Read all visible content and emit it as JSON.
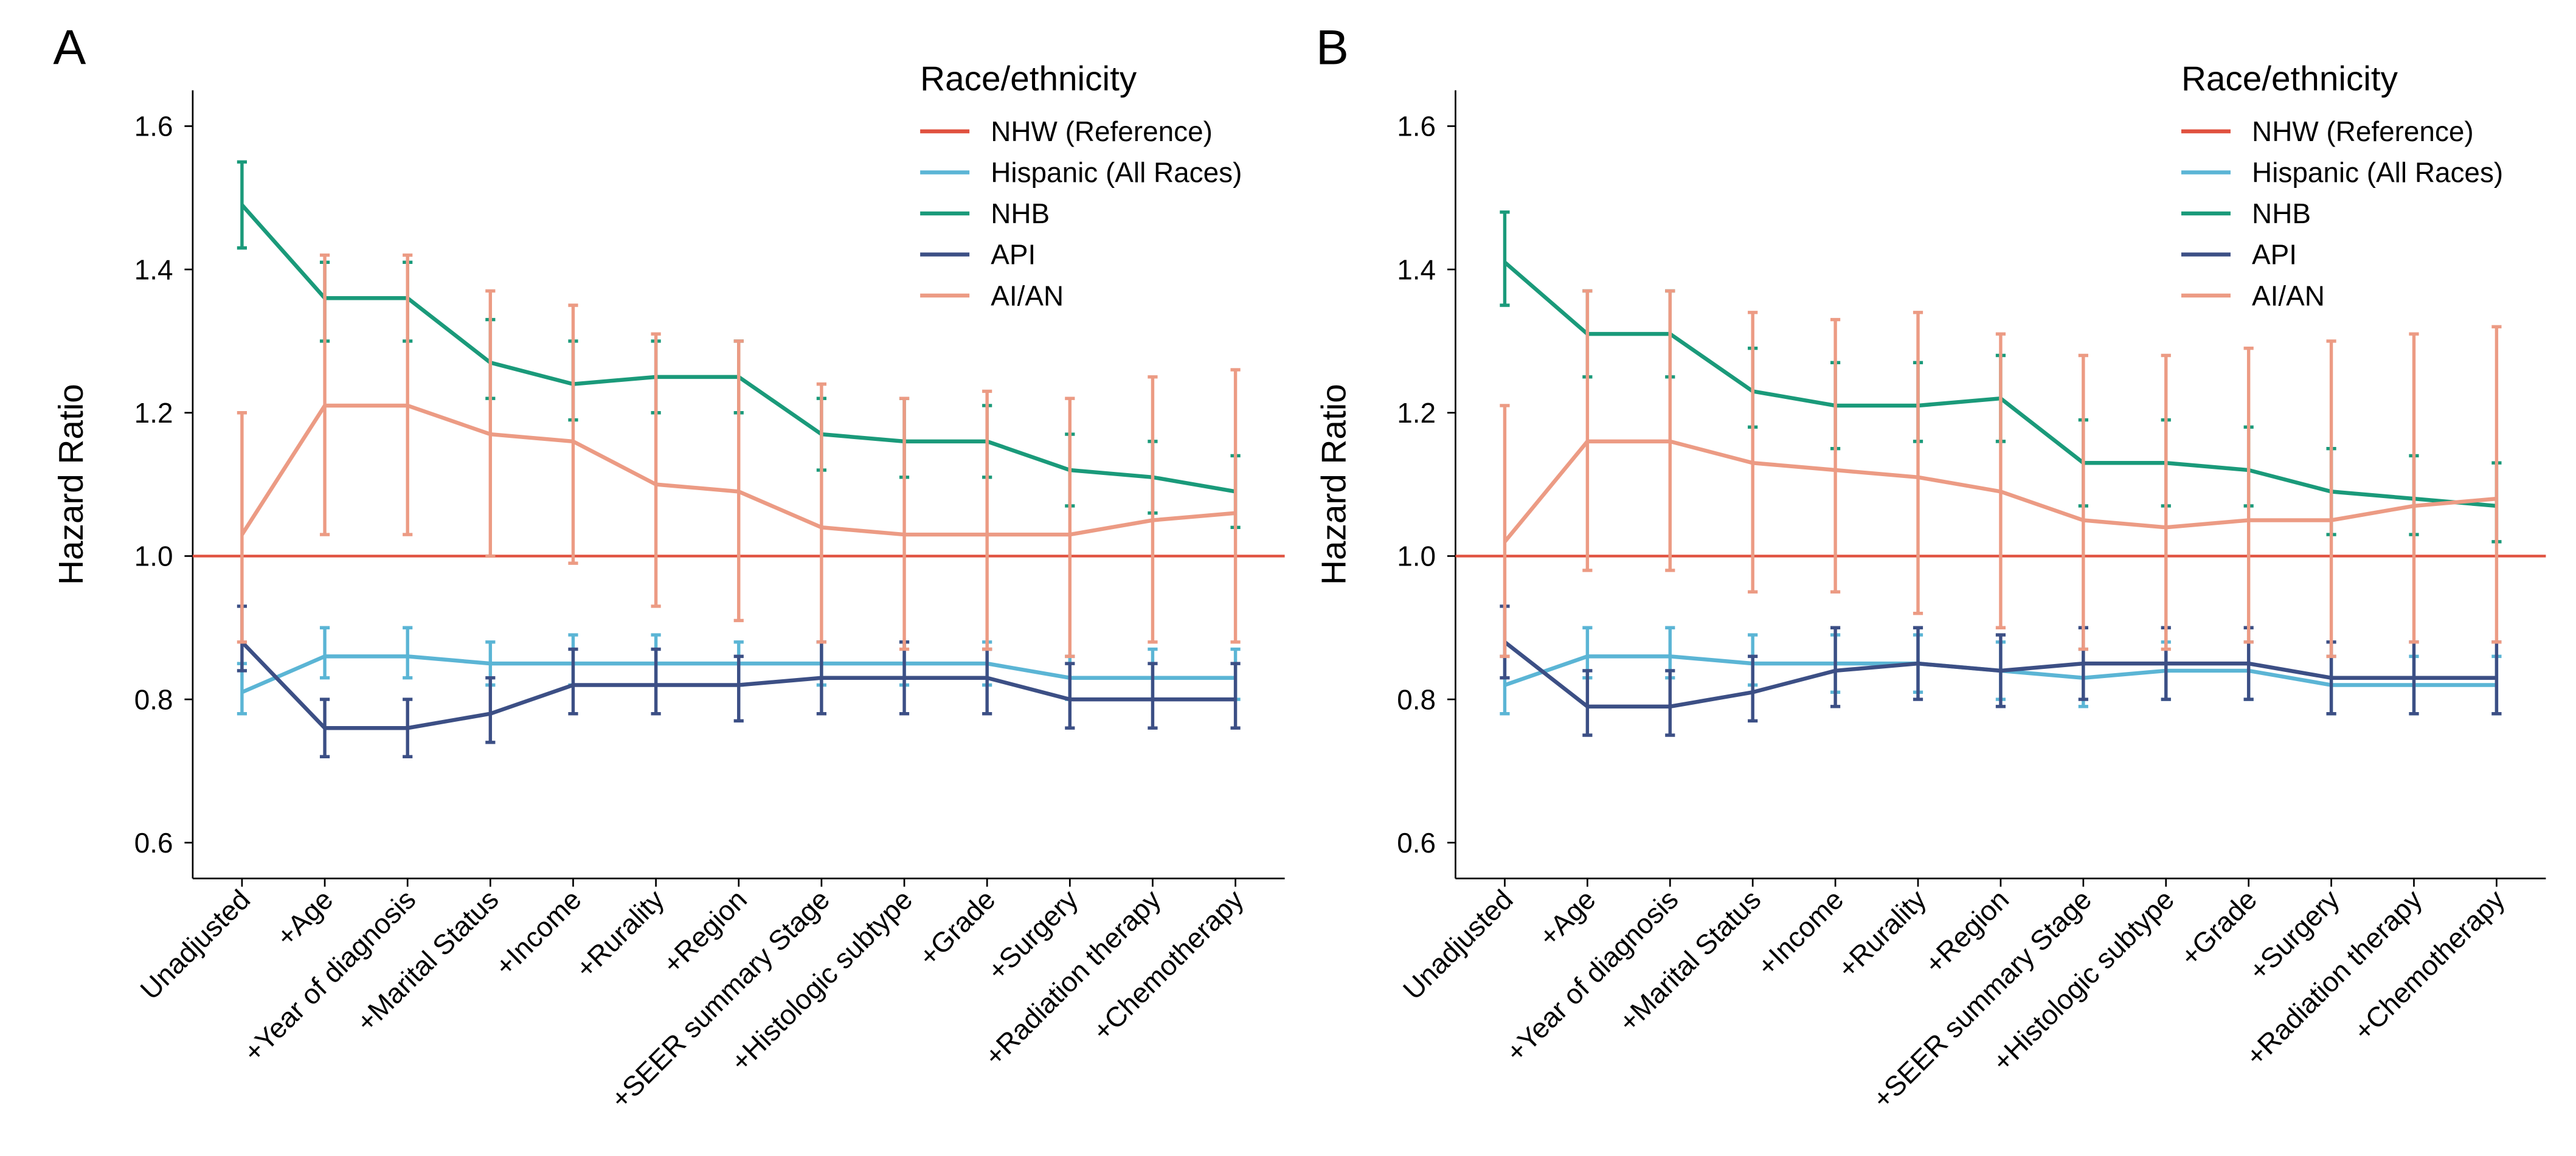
{
  "chart_data": [
    {
      "type": "line",
      "title": "A",
      "ylabel": "Hazard Ratio",
      "legend_title": "Race/ethnicity",
      "legend": "upper right",
      "categories": [
        "Unadjusted",
        "+Age",
        "+Year of diagnosis",
        "+Marital Status",
        "+Income",
        "+Rurality",
        "+Region",
        "+SEER summary Stage",
        "+Histologic subtype",
        "+Grade",
        "+Surgery",
        "+Radiation therapy",
        "+Chemotherapy"
      ],
      "ylim": [
        0.55,
        1.65
      ],
      "yticks": [
        0.6,
        0.8,
        {
          "value": 1.0,
          "label": "1.0"
        },
        1.2,
        1.4,
        1.6
      ],
      "series": [
        {
          "name": "NHW (Reference)",
          "color": "#e0513f",
          "reference": true,
          "values": [
            1,
            1,
            1,
            1,
            1,
            1,
            1,
            1,
            1,
            1,
            1,
            1,
            1
          ]
        },
        {
          "name": "Hispanic (All Races)",
          "color": "#5bb5d5",
          "values": [
            0.81,
            0.86,
            0.86,
            0.85,
            0.85,
            0.85,
            0.85,
            0.85,
            0.85,
            0.85,
            0.83,
            0.83,
            0.83
          ],
          "lower": [
            0.78,
            0.83,
            0.83,
            0.82,
            0.82,
            0.82,
            0.82,
            0.82,
            0.82,
            0.82,
            0.8,
            0.8,
            0.8
          ],
          "upper": [
            0.85,
            0.9,
            0.9,
            0.88,
            0.89,
            0.89,
            0.88,
            0.88,
            0.88,
            0.88,
            0.86,
            0.87,
            0.87
          ]
        },
        {
          "name": "NHB",
          "color": "#1a9a7a",
          "values": [
            1.49,
            1.36,
            1.36,
            1.27,
            1.24,
            1.25,
            1.25,
            1.17,
            1.16,
            1.16,
            1.12,
            1.11,
            1.09
          ],
          "lower": [
            1.43,
            1.3,
            1.3,
            1.22,
            1.19,
            1.2,
            1.2,
            1.12,
            1.11,
            1.11,
            1.07,
            1.06,
            1.04
          ],
          "upper": [
            1.55,
            1.41,
            1.41,
            1.33,
            1.3,
            1.3,
            1.3,
            1.22,
            1.22,
            1.21,
            1.17,
            1.16,
            1.14
          ]
        },
        {
          "name": "API",
          "color": "#3c4f85",
          "values": [
            0.88,
            0.76,
            0.76,
            0.78,
            0.82,
            0.82,
            0.82,
            0.83,
            0.83,
            0.83,
            0.8,
            0.8,
            0.8
          ],
          "lower": [
            0.84,
            0.72,
            0.72,
            0.74,
            0.78,
            0.78,
            0.77,
            0.78,
            0.78,
            0.78,
            0.76,
            0.76,
            0.76
          ],
          "upper": [
            0.93,
            0.8,
            0.8,
            0.83,
            0.87,
            0.87,
            0.86,
            0.88,
            0.88,
            0.87,
            0.85,
            0.85,
            0.85
          ]
        },
        {
          "name": "AI/AN",
          "color": "#ec9b84",
          "values": [
            1.03,
            1.21,
            1.21,
            1.17,
            1.16,
            1.1,
            1.09,
            1.04,
            1.03,
            1.03,
            1.03,
            1.05,
            1.06
          ],
          "lower": [
            0.88,
            1.03,
            1.03,
            1.0,
            0.99,
            0.93,
            0.91,
            0.88,
            0.87,
            0.87,
            0.86,
            0.88,
            0.88
          ],
          "upper": [
            1.2,
            1.42,
            1.42,
            1.37,
            1.35,
            1.31,
            1.3,
            1.24,
            1.22,
            1.23,
            1.22,
            1.25,
            1.26
          ]
        }
      ]
    },
    {
      "type": "line",
      "title": "B",
      "ylabel": "Hazard Ratio",
      "legend_title": "Race/ethnicity",
      "legend": "upper right",
      "categories": [
        "Unadjusted",
        "+Age",
        "+Year of diagnosis",
        "+Marital Status",
        "+Income",
        "+Rurality",
        "+Region",
        "+SEER summary Stage",
        "+Histologic subtype",
        "+Grade",
        "+Surgery",
        "+Radiation therapy",
        "+Chemotherapy"
      ],
      "ylim": [
        0.55,
        1.65
      ],
      "yticks": [
        0.6,
        0.8,
        {
          "value": 1.0,
          "label": "1.0"
        },
        1.2,
        1.4,
        1.6
      ],
      "series": [
        {
          "name": "NHW (Reference)",
          "color": "#e0513f",
          "reference": true,
          "values": [
            1,
            1,
            1,
            1,
            1,
            1,
            1,
            1,
            1,
            1,
            1,
            1,
            1
          ]
        },
        {
          "name": "Hispanic (All Races)",
          "color": "#5bb5d5",
          "values": [
            0.82,
            0.86,
            0.86,
            0.85,
            0.85,
            0.85,
            0.84,
            0.83,
            0.84,
            0.84,
            0.82,
            0.82,
            0.82
          ],
          "lower": [
            0.78,
            0.83,
            0.83,
            0.82,
            0.81,
            0.81,
            0.8,
            0.79,
            0.8,
            0.8,
            0.78,
            0.78,
            0.78
          ],
          "upper": [
            0.86,
            0.9,
            0.9,
            0.89,
            0.89,
            0.89,
            0.88,
            0.87,
            0.88,
            0.88,
            0.86,
            0.86,
            0.86
          ]
        },
        {
          "name": "NHB",
          "color": "#1a9a7a",
          "values": [
            1.41,
            1.31,
            1.31,
            1.23,
            1.21,
            1.21,
            1.22,
            1.13,
            1.13,
            1.12,
            1.09,
            1.08,
            1.07
          ],
          "lower": [
            1.35,
            1.25,
            1.25,
            1.18,
            1.15,
            1.16,
            1.16,
            1.07,
            1.07,
            1.07,
            1.03,
            1.03,
            1.02
          ],
          "upper": [
            1.48,
            1.37,
            1.37,
            1.29,
            1.27,
            1.27,
            1.28,
            1.19,
            1.19,
            1.18,
            1.15,
            1.14,
            1.13
          ]
        },
        {
          "name": "API",
          "color": "#3c4f85",
          "values": [
            0.88,
            0.79,
            0.79,
            0.81,
            0.84,
            0.85,
            0.84,
            0.85,
            0.85,
            0.85,
            0.83,
            0.83,
            0.83
          ],
          "lower": [
            0.83,
            0.75,
            0.75,
            0.77,
            0.79,
            0.8,
            0.79,
            0.8,
            0.8,
            0.8,
            0.78,
            0.78,
            0.78
          ],
          "upper": [
            0.93,
            0.84,
            0.84,
            0.86,
            0.9,
            0.9,
            0.89,
            0.9,
            0.9,
            0.9,
            0.88,
            0.88,
            0.88
          ]
        },
        {
          "name": "AI/AN",
          "color": "#ec9b84",
          "values": [
            1.02,
            1.16,
            1.16,
            1.13,
            1.12,
            1.11,
            1.09,
            1.05,
            1.04,
            1.05,
            1.05,
            1.07,
            1.08
          ],
          "lower": [
            0.86,
            0.98,
            0.98,
            0.95,
            0.95,
            0.92,
            0.9,
            0.87,
            0.87,
            0.88,
            0.86,
            0.88,
            0.88
          ],
          "upper": [
            1.21,
            1.37,
            1.37,
            1.34,
            1.33,
            1.34,
            1.31,
            1.28,
            1.28,
            1.29,
            1.3,
            1.31,
            1.32
          ]
        }
      ]
    }
  ]
}
